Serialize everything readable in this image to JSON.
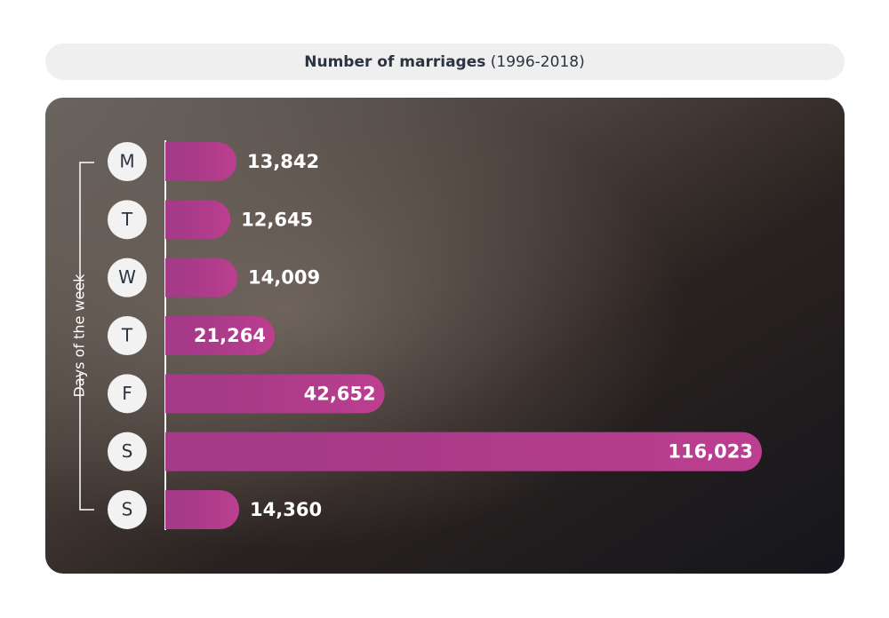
{
  "chart_data": {
    "type": "bar",
    "orientation": "horizontal",
    "title": "Number of marriages",
    "subtitle": "(1996-2018)",
    "y_label": "Days of the week",
    "categories": [
      "M",
      "T",
      "W",
      "T",
      "F",
      "S",
      "S"
    ],
    "values": [
      13842,
      12645,
      14009,
      21264,
      42652,
      116023,
      14360
    ],
    "value_labels": [
      "13,842",
      "12,645",
      "14,009",
      "21,264",
      "42,652",
      "116,023",
      "14,360"
    ],
    "color": "#b23f94"
  }
}
